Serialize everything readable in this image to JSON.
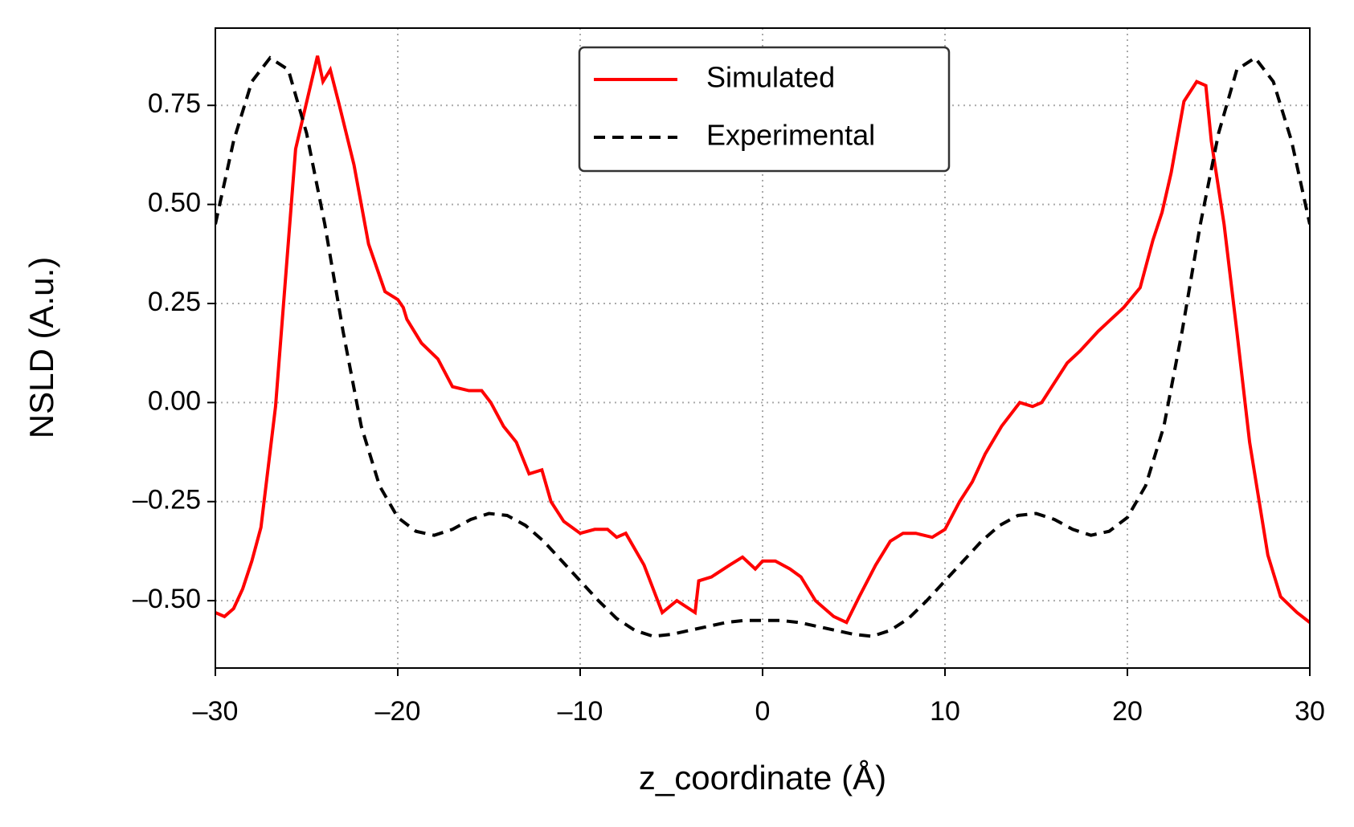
{
  "chart_data": {
    "type": "line",
    "xlabel": "z_coordinate (Å)",
    "ylabel": "NSLD (A.u.)",
    "series": [
      {
        "name": "Simulated",
        "color": "#ff0000",
        "linestyle": "solid",
        "x": [
          -30,
          -29.5,
          -29,
          -28.5,
          -28,
          -27.5,
          -26.7,
          -25.6,
          -24.4,
          -24.1,
          -23.7,
          -23.2,
          -22.4,
          -21.6,
          -20.7,
          -20,
          -19.7,
          -19.5,
          -18.7,
          -17.8,
          -17,
          -16.1,
          -15.4,
          -14.9,
          -14.2,
          -13.5,
          -12.8,
          -12.1,
          -11.6,
          -10.9,
          -10,
          -9.2,
          -8.5,
          -8,
          -7.5,
          -6.5,
          -5.5,
          -4.7,
          -3.7,
          -3.5,
          -2.8,
          -1.8,
          -1.1,
          -0.4,
          0,
          0.7,
          1.5,
          2.1,
          2.9,
          3.9,
          4.6,
          5.3,
          6.2,
          7,
          7.7,
          8.4,
          9.3,
          10,
          10.8,
          11.5,
          12.2,
          13.1,
          14.1,
          14.8,
          15.3,
          16,
          16.7,
          17.4,
          18.4,
          19.1,
          19.8,
          20.7,
          21.4,
          21.9,
          22.4,
          23.1,
          23.8,
          24.3,
          24.6,
          25.3,
          26,
          26.7,
          27.7,
          28.4,
          29.3,
          30
        ],
        "values": [
          -0.53,
          -0.54,
          -0.52,
          -0.47,
          -0.4,
          -0.315,
          -0.01,
          0.64,
          0.875,
          0.81,
          0.84,
          0.75,
          0.6,
          0.4,
          0.28,
          0.26,
          0.24,
          0.21,
          0.15,
          0.11,
          0.04,
          0.03,
          0.03,
          0.0,
          -0.06,
          -0.1,
          -0.18,
          -0.17,
          -0.25,
          -0.3,
          -0.33,
          -0.32,
          -0.32,
          -0.34,
          -0.33,
          -0.41,
          -0.53,
          -0.5,
          -0.53,
          -0.45,
          -0.44,
          -0.41,
          -0.39,
          -0.42,
          -0.4,
          -0.4,
          -0.42,
          -0.44,
          -0.5,
          -0.54,
          -0.555,
          -0.49,
          -0.41,
          -0.35,
          -0.33,
          -0.33,
          -0.34,
          -0.32,
          -0.25,
          -0.2,
          -0.13,
          -0.06,
          0.0,
          -0.01,
          0.0,
          0.05,
          0.1,
          0.13,
          0.18,
          0.21,
          0.24,
          0.29,
          0.41,
          0.48,
          0.58,
          0.76,
          0.81,
          0.8,
          0.66,
          0.45,
          0.18,
          -0.1,
          -0.385,
          -0.49,
          -0.53,
          -0.555
        ]
      },
      {
        "name": "Experimental",
        "color": "#000000",
        "linestyle": "dashed",
        "x": [
          -30,
          -29,
          -28,
          -27,
          -26,
          -25,
          -24,
          -23,
          -22,
          -21,
          -20,
          -19,
          -18,
          -17,
          -16,
          -15,
          -14,
          -13,
          -12,
          -11,
          -10,
          -9,
          -8,
          -7,
          -6,
          -5,
          -4,
          -3,
          -2,
          -1,
          0,
          1,
          2,
          3,
          4,
          5,
          6,
          7,
          8,
          9,
          10,
          11,
          12,
          13,
          14,
          15,
          16,
          17,
          18,
          19,
          20,
          21,
          22,
          23,
          24,
          25,
          26,
          27,
          28,
          29,
          30
        ],
        "values": [
          0.45,
          0.66,
          0.81,
          0.87,
          0.84,
          0.68,
          0.45,
          0.18,
          -0.06,
          -0.21,
          -0.29,
          -0.325,
          -0.335,
          -0.32,
          -0.295,
          -0.28,
          -0.285,
          -0.31,
          -0.35,
          -0.4,
          -0.45,
          -0.5,
          -0.545,
          -0.575,
          -0.59,
          -0.585,
          -0.575,
          -0.565,
          -0.555,
          -0.55,
          -0.55,
          -0.55,
          -0.555,
          -0.565,
          -0.575,
          -0.585,
          -0.59,
          -0.575,
          -0.545,
          -0.5,
          -0.45,
          -0.4,
          -0.35,
          -0.31,
          -0.285,
          -0.28,
          -0.295,
          -0.32,
          -0.335,
          -0.325,
          -0.29,
          -0.21,
          -0.06,
          0.18,
          0.45,
          0.68,
          0.84,
          0.87,
          0.81,
          0.66,
          0.45
        ]
      }
    ],
    "xlim": [
      -30,
      30
    ],
    "xticks": [
      {
        "value": -30,
        "label": "–30"
      },
      {
        "value": -20,
        "label": "–20"
      },
      {
        "value": -10,
        "label": "–10"
      },
      0,
      10,
      20,
      30
    ],
    "ylim": [
      -0.67,
      0.945
    ],
    "yticks": [
      {
        "value": -0.5,
        "label": "–0.50"
      },
      {
        "value": -0.25,
        "label": "–0.25"
      },
      {
        "value": 0,
        "label": "0.00"
      },
      0.25,
      {
        "value": 0.5,
        "label": "0.50"
      },
      0.75
    ],
    "grid": true,
    "legend": "upper center"
  }
}
